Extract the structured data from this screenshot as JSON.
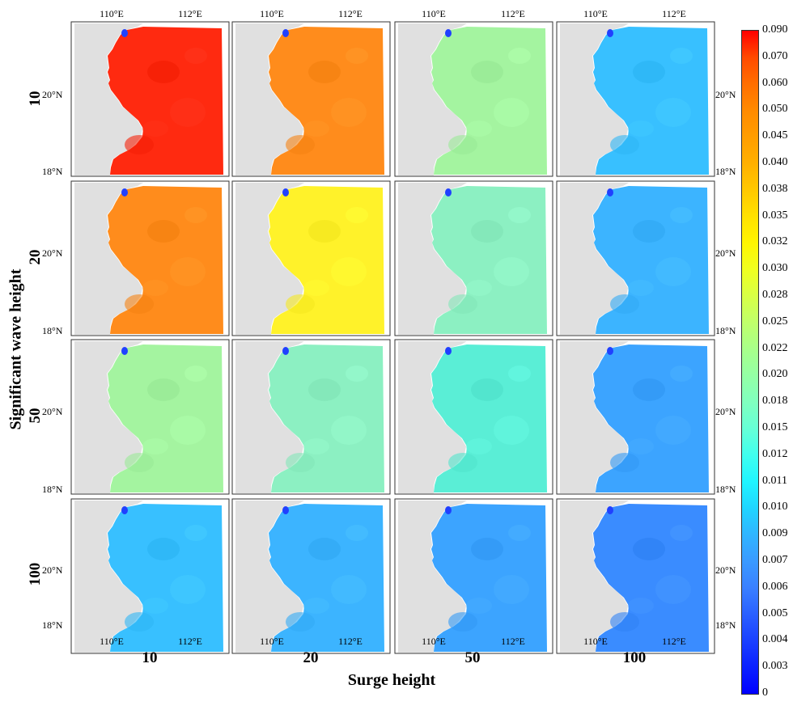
{
  "colorbar": {
    "labels": [
      "0.090",
      "0.070",
      "0.060",
      "0.050",
      "0.045",
      "0.040",
      "0.038",
      "0.035",
      "0.032",
      "0.030",
      "0.028",
      "0.025",
      "0.022",
      "0.020",
      "0.018",
      "0.015",
      "0.012",
      "0.011",
      "0.010",
      "0.009",
      "0.007",
      "0.006",
      "0.005",
      "0.004",
      "0.003",
      "0"
    ],
    "colors": [
      "#ff0000",
      "#ff4a00",
      "#ff6e00",
      "#ff8a00",
      "#ff9d00",
      "#ffb000",
      "#ffc800",
      "#ffe100",
      "#fff500",
      "#f0ff20",
      "#d8ff45",
      "#c0ff6a",
      "#a8ff8a",
      "#94ffa5",
      "#80ffbf",
      "#66ffd6",
      "#40ffee",
      "#20f5ff",
      "#20d5ff",
      "#30b5ff",
      "#3a9aff",
      "#3a80ff",
      "#2a60ff",
      "#1a40ff",
      "#0a20ff",
      "#0000ff"
    ]
  },
  "axes": {
    "x_top_ticks": [
      "110°E",
      "112°E"
    ],
    "x_bottom_ticks": [
      "110°E",
      "112°E"
    ],
    "y_ticks": [
      "20°N",
      "18°N"
    ]
  },
  "columns": [
    "10",
    "20",
    "50",
    "100"
  ],
  "rows": [
    "10",
    "20",
    "50",
    "100"
  ],
  "x_title": "Surge height",
  "y_title": "Significant wave height",
  "panels": [
    [
      "#ff2a10",
      "#ff8c1c",
      "#a4f4a0",
      "#38c0ff"
    ],
    [
      "#ff8c1c",
      "#fff22a",
      "#8cf0c2",
      "#3cb4ff"
    ],
    [
      "#a4f4a0",
      "#8cf0c2",
      "#5aeed6",
      "#3ca4ff"
    ],
    [
      "#38c0ff",
      "#3cb4ff",
      "#3ca4ff",
      "#3a8cff"
    ]
  ]
}
